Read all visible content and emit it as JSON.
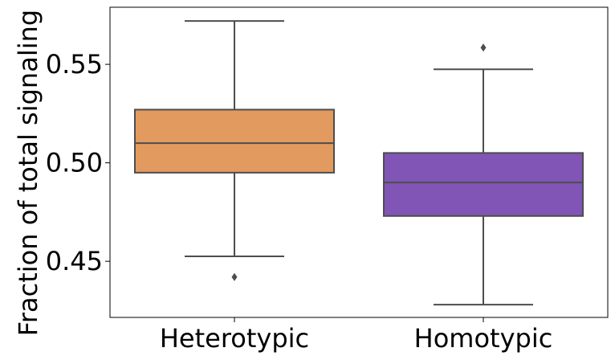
{
  "chart_data": {
    "type": "box",
    "title": "",
    "xlabel": "",
    "ylabel": "Fraction of total signaling",
    "categories": [
      "Heterotypic",
      "Homotypic"
    ],
    "ylim": [
      0.4215,
      0.579
    ],
    "yticks": [
      0.45,
      0.5,
      0.55
    ],
    "ytick_labels": [
      "0.45",
      "0.50",
      "0.55"
    ],
    "grid": false,
    "boxes": [
      {
        "category": "Heterotypic",
        "color": "#E39A5F",
        "q1": 0.495,
        "median": 0.51,
        "q3": 0.527,
        "whisker_low": 0.4525,
        "whisker_high": 0.572,
        "outliers": [
          0.442
        ]
      },
      {
        "category": "Homotypic",
        "color": "#8155B5",
        "q1": 0.473,
        "median": 0.49,
        "q3": 0.505,
        "whisker_low": 0.428,
        "whisker_high": 0.5475,
        "outliers": [
          0.5585
        ]
      }
    ]
  }
}
